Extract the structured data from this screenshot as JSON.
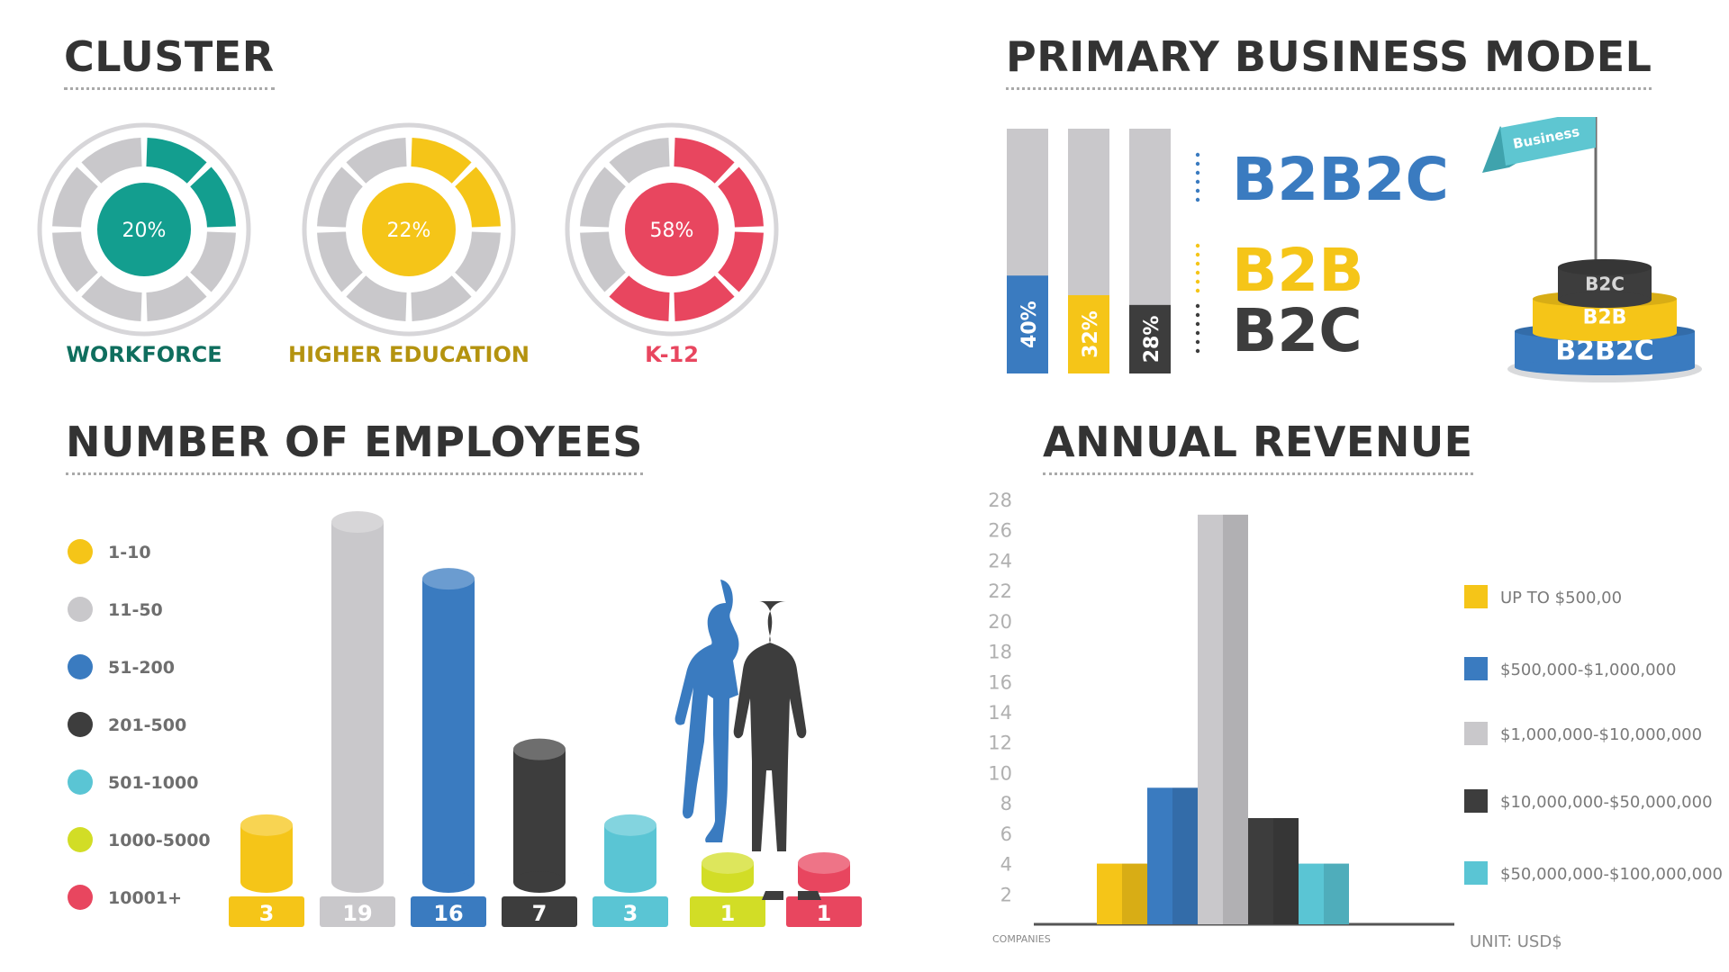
{
  "titles": {
    "cluster": "CLUSTER",
    "business_model": "PRIMARY BUSINESS MODEL",
    "employees": "NUMBER OF EMPLOYEES",
    "revenue": "ANNUAL REVENUE"
  },
  "colors": {
    "teal": "#139e8f",
    "yellow": "#f5c518",
    "pink": "#e8465f",
    "blue": "#3a7bc0",
    "dark": "#3d3d3d",
    "grey": "#c9c8cb",
    "cyan": "#5ac5d4",
    "lime": "#d2dd26",
    "label_teal": "#0f6e5e",
    "label_gold": "#b4930f"
  },
  "chart_data": [
    {
      "type": "pie",
      "id": "cluster",
      "title": "CLUSTER",
      "slices": [
        {
          "label": "WORKFORCE",
          "value": 20,
          "value_label": "20%",
          "color": "#139e8f",
          "label_color": "#0f6e5e"
        },
        {
          "label": "HIGHER EDUCATION",
          "value": 22,
          "value_label": "22%",
          "color": "#f5c518",
          "label_color": "#b4930f"
        },
        {
          "label": "K-12",
          "value": 58,
          "value_label": "58%",
          "color": "#e8465f",
          "label_color": "#e8465f"
        }
      ]
    },
    {
      "type": "bar",
      "id": "business_model",
      "title": "PRIMARY BUSINESS MODEL",
      "categories": [
        "B2B2C",
        "B2B",
        "B2C"
      ],
      "values": [
        40,
        32,
        28
      ],
      "value_labels": [
        "40%",
        "32%",
        "28%"
      ],
      "colors": [
        "#3a7bc0",
        "#f5c518",
        "#3d3d3d"
      ],
      "ylim": [
        0,
        100
      ],
      "illustration": {
        "flag_label": "Business",
        "tiers": [
          "B2C",
          "B2B",
          "B2B2C"
        ]
      }
    },
    {
      "type": "bar",
      "id": "employees",
      "title": "NUMBER OF EMPLOYEES",
      "categories": [
        "1-10",
        "11-50",
        "51-200",
        "201-500",
        "501-1000",
        "1000-5000",
        "10001+"
      ],
      "values": [
        3,
        19,
        16,
        7,
        3,
        1,
        1
      ],
      "value_labels": [
        "3",
        "19",
        "16",
        "7",
        "3",
        "1",
        "1"
      ],
      "colors": [
        "#f5c518",
        "#c9c8cb",
        "#3a7bc0",
        "#3d3d3d",
        "#5ac5d4",
        "#d2dd26",
        "#e8465f"
      ],
      "ylim": [
        0,
        19
      ],
      "legend": "left"
    },
    {
      "type": "bar",
      "id": "revenue",
      "title": "ANNUAL REVENUE",
      "categories": [
        "UP TO $500,00",
        "$500,000-$1,000,000",
        "$1,000,000-$10,000,000",
        "$10,000,000-$50,000,000",
        "$50,000,000-$100,000,000"
      ],
      "values": [
        4,
        9,
        27,
        7,
        4
      ],
      "colors": [
        "#f5c518",
        "#3a7bc0",
        "#c9c8cb",
        "#3d3d3d",
        "#5ac5d4"
      ],
      "ylim": [
        0,
        28
      ],
      "y_ticks": [
        2,
        4,
        6,
        8,
        10,
        12,
        14,
        16,
        18,
        20,
        22,
        24,
        26,
        28
      ],
      "xlabel": "COMPANIES",
      "unit_note": "UNIT: USD$",
      "legend": "right"
    }
  ]
}
